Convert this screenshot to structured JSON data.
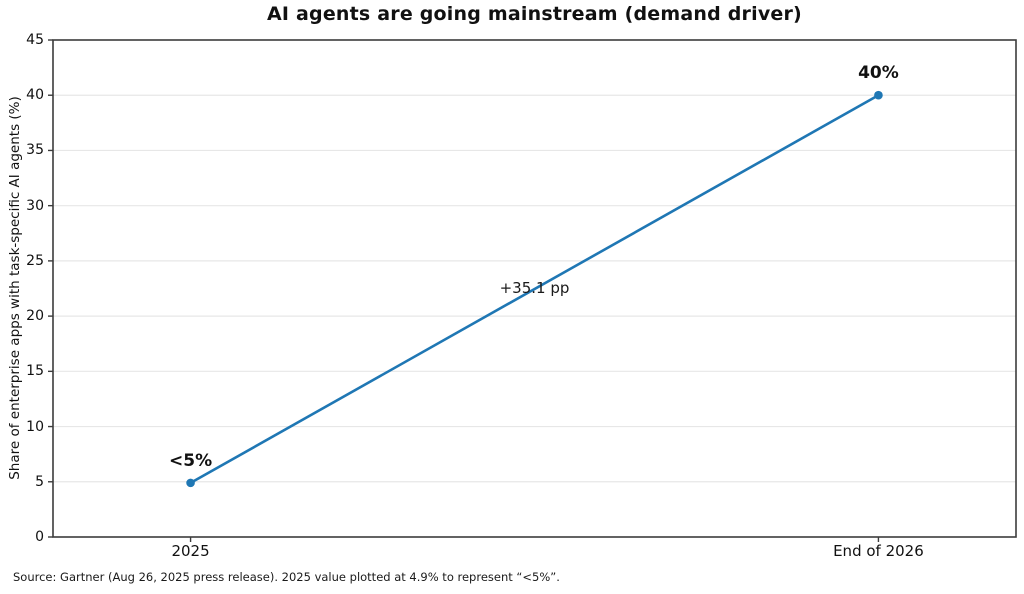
{
  "figure": {
    "title": "AI agents are going mainstream (demand driver)",
    "footnote": "Source: Gartner (Aug 26, 2025 press release). 2025 value plotted at 4.9% to represent “<5%”."
  },
  "chart_data": {
    "type": "line",
    "title": "AI agents are going mainstream (demand driver)",
    "xlabel": "",
    "ylabel": "Share of enterprise apps with task-specific AI agents (%)",
    "categories": [
      "2025",
      "End of 2026"
    ],
    "x": [
      0,
      1
    ],
    "xlim": [
      -0.2,
      1.2
    ],
    "ylim": [
      0,
      45
    ],
    "yticks": [
      0,
      5,
      10,
      15,
      20,
      25,
      30,
      35,
      40,
      45
    ],
    "grid": "horizontal-light",
    "legend": "none",
    "series": [
      {
        "name": "Share of enterprise apps with task-specific AI agents (%)",
        "values": [
          4.9,
          40
        ],
        "displayed_values": [
          "<5%",
          "40%"
        ]
      }
    ],
    "annotations": [
      {
        "text": "+35.1 pp",
        "x": 0.5,
        "y": 22.45
      }
    ],
    "colors": {
      "line": "#1f77b4",
      "marker": "#1f77b4",
      "grid": "#e7e7e7",
      "spine": "#3c3c3c",
      "text": "#111111"
    }
  }
}
